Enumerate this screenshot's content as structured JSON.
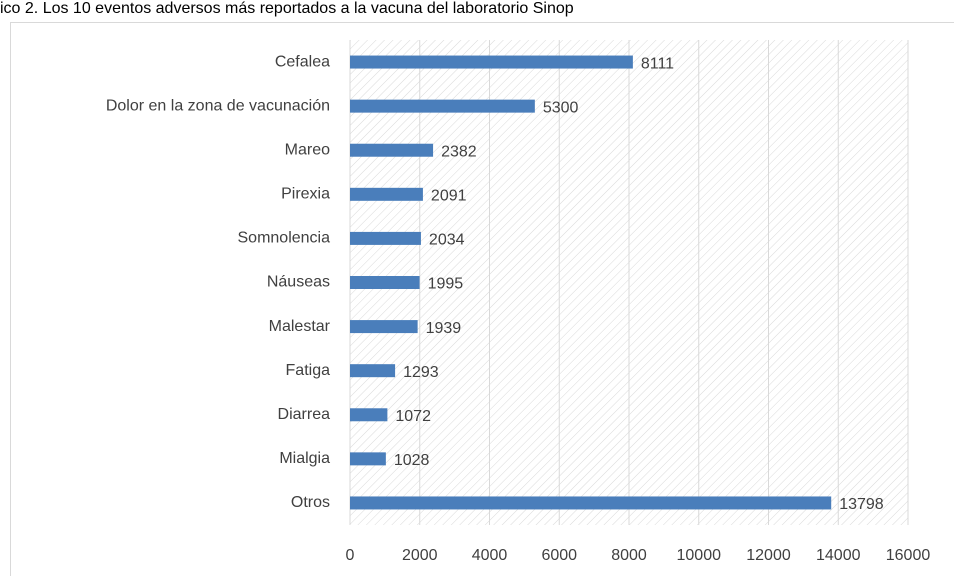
{
  "chart_data": {
    "type": "bar",
    "orientation": "horizontal",
    "title": "ico 2. Los 10 eventos adversos más reportados a la vacuna del laboratorio Sinop",
    "categories": [
      "Cefalea",
      "Dolor en la zona de vacunación",
      "Mareo",
      "Pirexia",
      "Somnolencia",
      "Náuseas",
      "Malestar",
      "Fatiga",
      "Diarrea",
      "Mialgia",
      "Otros"
    ],
    "values": [
      8111,
      5300,
      2382,
      2091,
      2034,
      1995,
      1939,
      1293,
      1072,
      1028,
      13798
    ],
    "color": "#4a7ebb",
    "xlim": [
      0,
      16000
    ],
    "xticks": [
      0,
      2000,
      4000,
      6000,
      8000,
      10000,
      12000,
      14000,
      16000
    ],
    "grid": true
  }
}
